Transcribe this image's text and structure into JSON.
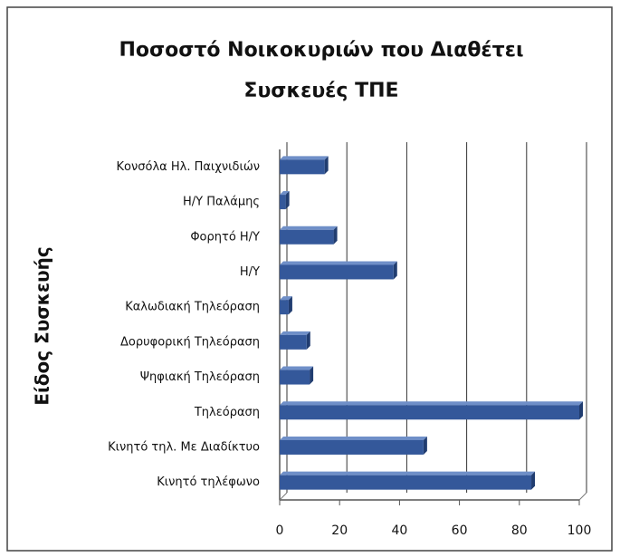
{
  "chart_data": {
    "type": "bar",
    "orientation": "horizontal",
    "title": [
      "Ποσοστό  Νοικοκυριών που Διαθέτει",
      "Συσκευές ΤΠΕ"
    ],
    "y_label": "Είδος Συσκευής",
    "categories": [
      "Κονσόλα Ηλ. Παιχνιδιών",
      "Η/Υ Παλάμης",
      "Φορητό Η/Υ",
      "Η/Υ",
      "Καλωδιακή Τηλεόραση",
      "Δορυφορική Τηλεόραση",
      "Ψηφιακή Τηλεόραση",
      "Τηλεόραση",
      "Κινητό τηλ. Με Διαδίκτυο",
      "Κινητό τηλέφωνο"
    ],
    "values": [
      15,
      2,
      18,
      38,
      3,
      9,
      10,
      100,
      48,
      84
    ],
    "color": "#34589a",
    "xlim": [
      0,
      100
    ],
    "xticks": [
      0,
      20,
      40,
      60,
      80,
      100
    ],
    "grid": true
  }
}
